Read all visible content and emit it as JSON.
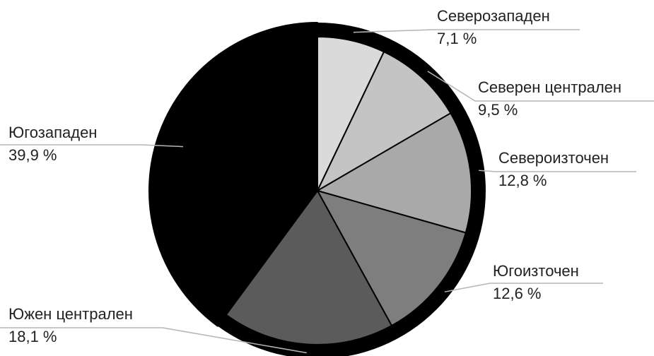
{
  "chart_data": {
    "type": "pie",
    "title": "",
    "slices": [
      {
        "label": "Северозападен",
        "value": 7.1,
        "display": "7,1 %",
        "color": "#dadada"
      },
      {
        "label": "Северен централен",
        "value": 9.5,
        "display": "9,5 %",
        "color": "#c4c4c4"
      },
      {
        "label": "Североизточен",
        "value": 12.8,
        "display": "12,8 %",
        "color": "#a9a9a9"
      },
      {
        "label": "Югоизточен",
        "value": 12.6,
        "display": "12,6 %",
        "color": "#7e7e7e"
      },
      {
        "label": "Южен централен",
        "value": 18.1,
        "display": "18,1 %",
        "color": "#5b5b5b"
      },
      {
        "label": "Югозападен",
        "value": 39.9,
        "display": "39,9 %",
        "color": "#000000"
      }
    ],
    "legend": "none",
    "grid": false
  }
}
